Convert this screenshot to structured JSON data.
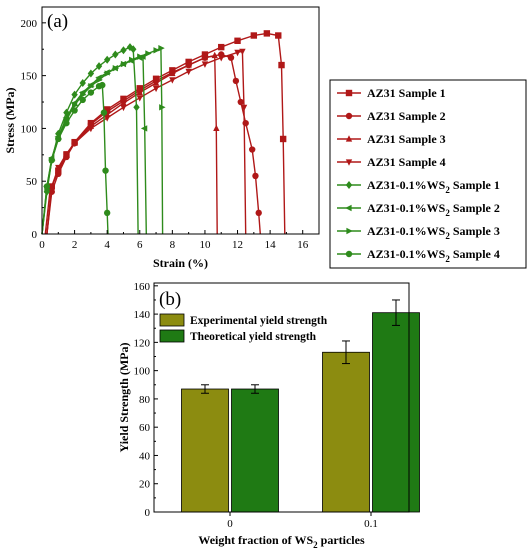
{
  "chart_data": [
    {
      "panel_label": "(a)",
      "type": "line",
      "xlabel": "Strain (%)",
      "ylabel": "Stress (MPa)",
      "xlim": [
        0,
        17
      ],
      "ylim": [
        0,
        215
      ],
      "xticks": [
        0,
        2,
        4,
        6,
        8,
        10,
        12,
        14,
        16
      ],
      "yticks": [
        0,
        50,
        100,
        150,
        200
      ],
      "legend_position": "right",
      "series": [
        {
          "name": "AZ31 Sample 1",
          "name_base": "AZ31 Sample 1",
          "name_sub": "",
          "name_tail": "",
          "marker": "square",
          "color": "#b01818",
          "points": [
            [
              0.3,
              0
            ],
            [
              0.6,
              45
            ],
            [
              1,
              60
            ],
            [
              1.5,
              75
            ],
            [
              2,
              87
            ],
            [
              3,
              105
            ],
            [
              4,
              118
            ],
            [
              5,
              128
            ],
            [
              6,
              138
            ],
            [
              7,
              147
            ],
            [
              8,
              155
            ],
            [
              9,
              163
            ],
            [
              10,
              170
            ],
            [
              11,
              177
            ],
            [
              12,
              183
            ],
            [
              13,
              188
            ],
            [
              13.8,
              190
            ],
            [
              14.5,
              188
            ],
            [
              14.7,
              160
            ],
            [
              14.8,
              90
            ],
            [
              14.9,
              0
            ]
          ]
        },
        {
          "name": "AZ31 Sample 2",
          "name_base": "AZ31 Sample 2",
          "name_sub": "",
          "name_tail": "",
          "marker": "circle",
          "color": "#b01818",
          "points": [
            [
              0.3,
              0
            ],
            [
              0.6,
              40
            ],
            [
              1,
              57
            ],
            [
              1.5,
              73
            ],
            [
              2,
              86
            ],
            [
              3,
              104
            ],
            [
              4,
              116
            ],
            [
              5,
              126
            ],
            [
              6,
              136
            ],
            [
              7,
              145
            ],
            [
              8,
              153
            ],
            [
              9,
              160
            ],
            [
              10,
              167
            ],
            [
              11,
              170
            ],
            [
              11.6,
              167
            ],
            [
              11.9,
              145
            ],
            [
              12.2,
              125
            ],
            [
              12.5,
              105
            ],
            [
              12.9,
              80
            ],
            [
              13.1,
              55
            ],
            [
              13.3,
              20
            ],
            [
              13.4,
              0
            ]
          ]
        },
        {
          "name": "AZ31 Sample 3",
          "name_base": "AZ31 Sample 3",
          "name_sub": "",
          "name_tail": "",
          "marker": "triangle-up",
          "color": "#b01818",
          "points": [
            [
              0.2,
              0
            ],
            [
              0.5,
              42
            ],
            [
              1,
              60
            ],
            [
              1.5,
              75
            ],
            [
              2,
              86
            ],
            [
              3,
              102
            ],
            [
              4,
              113
            ],
            [
              5,
              124
            ],
            [
              6,
              134
            ],
            [
              7,
              143
            ],
            [
              8,
              152
            ],
            [
              9,
              160
            ],
            [
              10,
              167
            ],
            [
              10.6,
              169
            ],
            [
              10.7,
              100
            ],
            [
              10.75,
              0
            ]
          ]
        },
        {
          "name": "AZ31 Sample 4",
          "name_base": "AZ31 Sample 4",
          "name_sub": "",
          "name_tail": "",
          "marker": "triangle-down",
          "color": "#b01818",
          "points": [
            [
              0.3,
              0
            ],
            [
              0.6,
              45
            ],
            [
              1,
              63
            ],
            [
              1.5,
              76
            ],
            [
              2,
              86
            ],
            [
              3,
              100
            ],
            [
              4,
              110
            ],
            [
              5,
              120
            ],
            [
              6,
              129
            ],
            [
              7,
              138
            ],
            [
              8,
              146
            ],
            [
              9,
              154
            ],
            [
              10,
              161
            ],
            [
              11,
              167
            ],
            [
              12,
              172
            ],
            [
              12.3,
              173
            ],
            [
              12.4,
              120
            ],
            [
              12.5,
              0
            ]
          ]
        },
        {
          "name": "AZ31-0.1%WS2 Sample 1",
          "name_base": "AZ31-0.1%WS",
          "name_sub": "2",
          "name_tail": " Sample 1",
          "marker": "diamond",
          "color": "#2e8b1c",
          "points": [
            [
              0,
              0
            ],
            [
              0.3,
              40
            ],
            [
              0.6,
              70
            ],
            [
              1,
              95
            ],
            [
              1.5,
              115
            ],
            [
              2,
              132
            ],
            [
              2.5,
              143
            ],
            [
              3,
              152
            ],
            [
              3.5,
              159
            ],
            [
              4,
              165
            ],
            [
              4.5,
              170
            ],
            [
              5,
              174
            ],
            [
              5.4,
              177
            ],
            [
              5.6,
              175
            ],
            [
              5.8,
              120
            ],
            [
              5.9,
              0
            ]
          ]
        },
        {
          "name": "AZ31-0.1%WS2 Sample 2",
          "name_base": "AZ31-0.1%WS",
          "name_sub": "2",
          "name_tail": " Sample 2",
          "marker": "triangle-left",
          "color": "#2e8b1c",
          "points": [
            [
              0,
              0
            ],
            [
              0.3,
              45
            ],
            [
              0.6,
              72
            ],
            [
              1,
              92
            ],
            [
              1.5,
              110
            ],
            [
              2,
              124
            ],
            [
              2.5,
              134
            ],
            [
              3,
              141
            ],
            [
              3.5,
              148
            ],
            [
              4,
              153
            ],
            [
              4.5,
              157
            ],
            [
              5,
              161
            ],
            [
              5.5,
              164
            ],
            [
              6,
              167
            ],
            [
              6.2,
              168
            ],
            [
              6.3,
              100
            ],
            [
              6.4,
              0
            ]
          ]
        },
        {
          "name": "AZ31-0.1%WS2 Sample 3",
          "name_base": "AZ31-0.1%WS",
          "name_sub": "2",
          "name_tail": " Sample 3",
          "marker": "triangle-right",
          "color": "#2e8b1c",
          "points": [
            [
              0,
              0
            ],
            [
              0.3,
              42
            ],
            [
              0.6,
              70
            ],
            [
              1,
              90
            ],
            [
              1.5,
              108
            ],
            [
              2,
              122
            ],
            [
              2.5,
              132
            ],
            [
              3,
              140
            ],
            [
              3.5,
              146
            ],
            [
              4,
              152
            ],
            [
              4.5,
              157
            ],
            [
              5,
              161
            ],
            [
              5.5,
              165
            ],
            [
              6,
              168
            ],
            [
              6.5,
              171
            ],
            [
              7,
              174
            ],
            [
              7.3,
              176
            ],
            [
              7.35,
              120
            ],
            [
              7.4,
              0
            ]
          ]
        },
        {
          "name": "AZ31-0.1%WS2 Sample 4",
          "name_base": "AZ31-0.1%WS",
          "name_sub": "2",
          "name_tail": " Sample 4",
          "marker": "circle",
          "color": "#2e8b1c",
          "points": [
            [
              0,
              0
            ],
            [
              0.3,
              45
            ],
            [
              0.6,
              70
            ],
            [
              1,
              90
            ],
            [
              1.5,
              105
            ],
            [
              2,
              117
            ],
            [
              2.5,
              127
            ],
            [
              3,
              134
            ],
            [
              3.5,
              140
            ],
            [
              3.7,
              141
            ],
            [
              3.8,
              115
            ],
            [
              3.9,
              60
            ],
            [
              4.0,
              20
            ],
            [
              4.05,
              0
            ]
          ]
        }
      ]
    },
    {
      "panel_label": "(b)",
      "type": "bar",
      "xlabel_base": "Weight fraction of WS",
      "xlabel_sub": "2",
      "xlabel_tail": " particles",
      "ylabel": "Yield Strength (MPa)",
      "ylim": [
        0,
        162
      ],
      "yticks": [
        0,
        20,
        40,
        60,
        80,
        100,
        120,
        140,
        160
      ],
      "categories": [
        "0",
        "0.1"
      ],
      "legend_position": "top-left",
      "series": [
        {
          "name": "Experimental yield strength",
          "color": "#8c8c10",
          "values": [
            87,
            113
          ],
          "errors": [
            3,
            8
          ]
        },
        {
          "name": "Theoretical yield strength",
          "color": "#1f7a14",
          "values": [
            87,
            141
          ],
          "errors": [
            3,
            9
          ]
        }
      ]
    }
  ]
}
